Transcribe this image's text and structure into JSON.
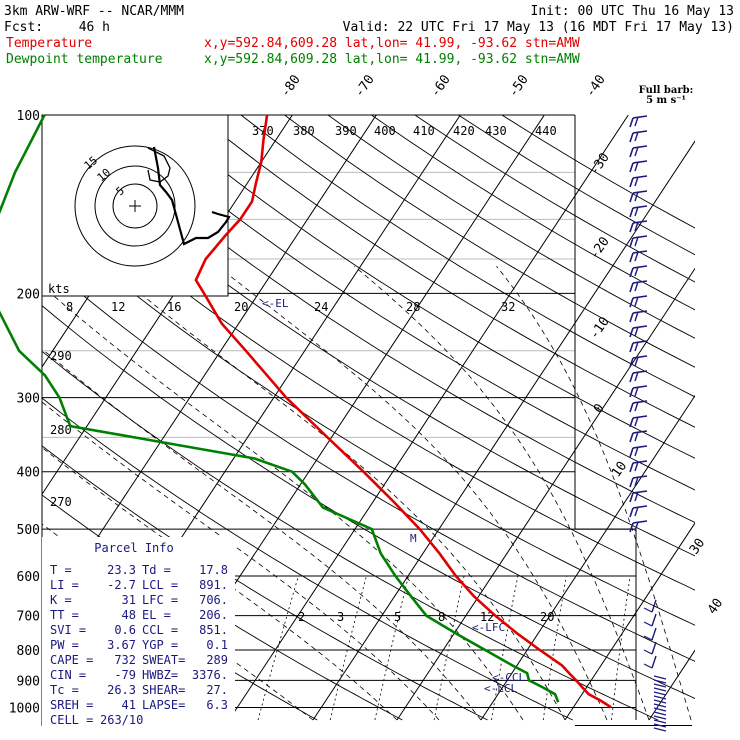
{
  "header": {
    "model": "3km ARW-WRF -- NCAR/MMM",
    "init": "Init: 00 UTC Thu 16 May 13",
    "fcst_label": "Fcst:",
    "fcst_value": "46 h",
    "valid": "Valid: 22 UTC Fri 17 May 13 (16 MDT Fri 17 May 13)",
    "legend": [
      {
        "name": "Temperature",
        "info": "x,y=592.84,609.28   lat,lon= 41.99, -93.62  stn=AMW",
        "color": "#e00000"
      },
      {
        "name": "Dewpoint temperature",
        "info": "x,y=592.84,609.28   lat,lon= 41.99, -93.62  stn=AMW",
        "color": "#008000"
      }
    ]
  },
  "full_barb": {
    "line1": "Full barb:",
    "line2": "5 m s⁻¹"
  },
  "parcel_info": {
    "title": "Parcel Info",
    "rows": [
      [
        "T  =",
        "23.3",
        "Td =",
        "17.8"
      ],
      [
        "LI =",
        "-2.7",
        "LCL =",
        "891."
      ],
      [
        "K  =",
        "31",
        "LFC =",
        "706."
      ],
      [
        "TT =",
        "48",
        "EL =",
        "206."
      ],
      [
        "SVI =",
        "0.6",
        "CCL =",
        "851."
      ],
      [
        "PW =",
        "3.67",
        "YGP =",
        "0.1"
      ],
      [
        "CAPE =",
        "732",
        "SWEAT=",
        "289"
      ],
      [
        "CIN =",
        "-79",
        "HWBZ=",
        "3376."
      ],
      [
        "Tc =",
        "26.3",
        "SHEAR=",
        "27."
      ],
      [
        "SREH =",
        "41",
        "LAPSE=",
        "6.3"
      ],
      [
        "CELL =",
        "263/10",
        "",
        ""
      ]
    ]
  },
  "hodograph": {
    "speed_unit": "kts",
    "ring_labels": [
      "5",
      "10",
      "15"
    ]
  },
  "level_marks": [
    "<-EL",
    "<-LFC",
    "<-CCL",
    "<-LCL",
    "M"
  ],
  "chart_data": {
    "type": "line",
    "xlabel": "",
    "ylabel": "",
    "pressure_axis_hPa": [
      100,
      200,
      300,
      400,
      500,
      600,
      700,
      800,
      900,
      1000
    ],
    "temperature_ticks_C": [
      -80,
      -70,
      -60,
      -50,
      -40,
      -30,
      -20,
      -10,
      0,
      10,
      20,
      30,
      40
    ],
    "dry_adiabat_labels_K": [
      370,
      380,
      390,
      400,
      410,
      420,
      430,
      440,
      290,
      280,
      270
    ],
    "mixing_ratio_labels": [
      2,
      3,
      5,
      8,
      12,
      20
    ],
    "wind_speed_labels_kts": [
      8,
      12,
      16,
      20,
      24,
      28,
      32
    ],
    "series": [
      {
        "name": "Temperature",
        "color": "#e00000",
        "points": [
          {
            "p": 1000,
            "t": 24.5
          },
          {
            "p": 975,
            "t": 22.8
          },
          {
            "p": 950,
            "t": 20.8
          },
          {
            "p": 925,
            "t": 19.5
          },
          {
            "p": 900,
            "t": 18.2
          },
          {
            "p": 875,
            "t": 16.8
          },
          {
            "p": 850,
            "t": 15.4
          },
          {
            "p": 800,
            "t": 11.5
          },
          {
            "p": 750,
            "t": 7.5
          },
          {
            "p": 700,
            "t": 3.5
          },
          {
            "p": 650,
            "t": -0.5
          },
          {
            "p": 600,
            "t": -4.3
          },
          {
            "p": 550,
            "t": -8.0
          },
          {
            "p": 500,
            "t": -12.3
          },
          {
            "p": 450,
            "t": -17.5
          },
          {
            "p": 400,
            "t": -23.5
          },
          {
            "p": 350,
            "t": -30.5
          },
          {
            "p": 300,
            "t": -38.5
          },
          {
            "p": 250,
            "t": -47.0
          },
          {
            "p": 225,
            "t": -52.0
          },
          {
            "p": 200,
            "t": -56.5
          },
          {
            "p": 190,
            "t": -58.5
          },
          {
            "p": 175,
            "t": -59.0
          },
          {
            "p": 160,
            "t": -58.5
          },
          {
            "p": 150,
            "t": -58.0
          },
          {
            "p": 140,
            "t": -58.0
          },
          {
            "p": 130,
            "t": -59.0
          },
          {
            "p": 120,
            "t": -60.0
          },
          {
            "p": 110,
            "t": -61.5
          },
          {
            "p": 100,
            "t": -63.0
          }
        ]
      },
      {
        "name": "Dewpoint temperature",
        "color": "#008000",
        "points": [
          {
            "p": 980,
            "t": 17.8
          },
          {
            "p": 950,
            "t": 16.8
          },
          {
            "p": 925,
            "t": 14.8
          },
          {
            "p": 900,
            "t": 12.6
          },
          {
            "p": 875,
            "t": 11.8
          },
          {
            "p": 850,
            "t": 9.5
          },
          {
            "p": 800,
            "t": 5.0
          },
          {
            "p": 750,
            "t": 0.2
          },
          {
            "p": 700,
            "t": -4.7
          },
          {
            "p": 650,
            "t": -8.0
          },
          {
            "p": 600,
            "t": -11.5
          },
          {
            "p": 550,
            "t": -15.0
          },
          {
            "p": 500,
            "t": -18.0
          },
          {
            "p": 460,
            "t": -25.5
          },
          {
            "p": 420,
            "t": -29.5
          },
          {
            "p": 400,
            "t": -32.0
          },
          {
            "p": 380,
            "t": -37.5
          },
          {
            "p": 360,
            "t": -48.0
          },
          {
            "p": 335,
            "t": -62.0
          },
          {
            "p": 300,
            "t": -65.5
          },
          {
            "p": 275,
            "t": -69.0
          },
          {
            "p": 250,
            "t": -74.0
          },
          {
            "p": 200,
            "t": -82.0
          },
          {
            "p": 150,
            "t": -87.0
          },
          {
            "p": 125,
            "t": -88.5
          },
          {
            "p": 100,
            "t": -89.5
          }
        ]
      }
    ]
  }
}
